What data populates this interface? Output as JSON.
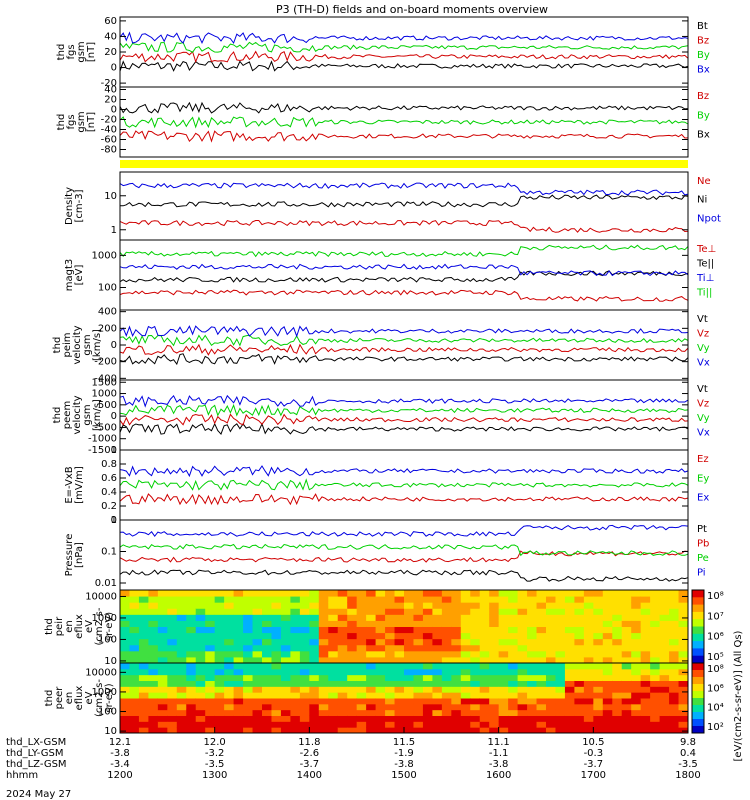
{
  "title": "P3 (TH-D) fields and on-board moments overview",
  "footer": {
    "rows": [
      {
        "label": "thd_LX-GSM",
        "values": [
          "12.1",
          "12.0",
          "11.8",
          "11.5",
          "11.1",
          "10.5",
          "9.8"
        ]
      },
      {
        "label": "thd_LY-GSM",
        "values": [
          "-3.8",
          "-3.2",
          "-2.6",
          "-1.9",
          "-1.1",
          "-0.3",
          "0.4"
        ]
      },
      {
        "label": "thd_LZ-GSM",
        "values": [
          "-3.4",
          "-3.5",
          "-3.7",
          "-3.8",
          "-3.8",
          "-3.7",
          "-3.5"
        ]
      },
      {
        "label": "hhmm",
        "values": [
          "1200",
          "1300",
          "1400",
          "1500",
          "1600",
          "1700",
          "1800"
        ]
      }
    ],
    "date": "2024 May 27"
  },
  "colorbar_label": "[eV/(cm2-s-sr-eV)] (All Qs)",
  "chart_data": [
    {
      "type": "line",
      "id": "fgs",
      "ylabel": [
        "thd",
        "fgs",
        "gsm",
        "[nT]"
      ],
      "ylim": [
        -25,
        65
      ],
      "yticks": [
        -20,
        0,
        20,
        40,
        60
      ],
      "legend": [
        {
          "name": "Bt",
          "color": "#000000"
        },
        {
          "name": "Bz",
          "color": "#d00000"
        },
        {
          "name": "By",
          "color": "#00d000"
        },
        {
          "name": "Bx",
          "color": "#0000e0"
        }
      ]
    },
    {
      "type": "line",
      "id": "fgs-dsl",
      "ylabel": [
        "thd",
        "fgs",
        "gsm",
        "[nT]"
      ],
      "ylim": [
        -95,
        45
      ],
      "yticks": [
        -80,
        -60,
        -40,
        -20,
        0,
        20,
        40
      ],
      "legend": [
        {
          "name": "Bz",
          "color": "#d00000"
        },
        {
          "name": "By",
          "color": "#00d000"
        },
        {
          "name": "Bx",
          "color": "#000000"
        }
      ]
    },
    {
      "type": "line",
      "id": "density",
      "ylabel": [
        "Density",
        "[cm-3]"
      ],
      "scale": "log",
      "ylim": [
        0.5,
        50
      ],
      "yticks": [
        1,
        10
      ],
      "legend": [
        {
          "name": "Ne",
          "color": "#d00000"
        },
        {
          "name": "Ni",
          "color": "#000000"
        },
        {
          "name": "Npot",
          "color": "#0000e0"
        }
      ]
    },
    {
      "type": "line",
      "id": "temp",
      "ylabel": [
        "magt3",
        "[eV]"
      ],
      "scale": "log",
      "ylim": [
        20,
        3000
      ],
      "yticks": [
        100,
        1000
      ],
      "legend": [
        {
          "name": "Te⊥",
          "color": "#d00000"
        },
        {
          "name": "Te||",
          "color": "#000000"
        },
        {
          "name": "Ti⊥",
          "color": "#0000e0"
        },
        {
          "name": "Ti||",
          "color": "#00d000"
        }
      ]
    },
    {
      "type": "line",
      "id": "ivel",
      "ylabel": [
        "thd",
        "peim",
        "velocity",
        "gsm",
        "[km/s]"
      ],
      "ylim": [
        -420,
        420
      ],
      "yticks": [
        -400,
        -200,
        0,
        200,
        400
      ],
      "legend": [
        {
          "name": "Vt",
          "color": "#000000"
        },
        {
          "name": "Vz",
          "color": "#d00000"
        },
        {
          "name": "Vy",
          "color": "#00d000"
        },
        {
          "name": "Vx",
          "color": "#0000e0"
        }
      ]
    },
    {
      "type": "line",
      "id": "evel",
      "ylabel": [
        "thd",
        "peem",
        "velocity",
        "gsm",
        "[km/s]"
      ],
      "ylim": [
        -1500,
        1600
      ],
      "yticks": [
        -1500,
        -1000,
        -500,
        0,
        500,
        1000,
        1500
      ],
      "legend": [
        {
          "name": "Vt",
          "color": "#000000"
        },
        {
          "name": "Vz",
          "color": "#d00000"
        },
        {
          "name": "Vy",
          "color": "#00d000"
        },
        {
          "name": "Vx",
          "color": "#0000e0"
        }
      ]
    },
    {
      "type": "line",
      "id": "efield",
      "ylabel": [
        "E=-VxB",
        "[mV/m]"
      ],
      "ylim": [
        0,
        1
      ],
      "yticks": [
        0.0,
        0.2,
        0.4,
        0.6,
        0.8,
        1.0
      ],
      "legend": [
        {
          "name": "Ez",
          "color": "#d00000"
        },
        {
          "name": "Ey",
          "color": "#00d000"
        },
        {
          "name": "Ex",
          "color": "#0000e0"
        }
      ]
    },
    {
      "type": "line",
      "id": "pressure",
      "ylabel": [
        "Pressure",
        "[nPa]"
      ],
      "scale": "log",
      "ylim": [
        0.006,
        1.0
      ],
      "yticks": [
        0.01,
        0.1,
        1.0
      ],
      "legend": [
        {
          "name": "Pt",
          "color": "#000000"
        },
        {
          "name": "Pb",
          "color": "#d00000"
        },
        {
          "name": "Pe",
          "color": "#00d000"
        },
        {
          "name": "Pi",
          "color": "#0000e0"
        }
      ]
    },
    {
      "type": "heatmap",
      "id": "ion-spec",
      "ylabel": [
        "thd",
        "peir",
        "en",
        "eflux",
        "eV",
        "(cm2-s-",
        "sr-eV)"
      ],
      "scale": "log",
      "ylim": [
        8,
        20000
      ],
      "yticks": [
        10,
        100,
        1000,
        10000
      ],
      "cbar": [
        "10⁵",
        "10⁶",
        "10⁷",
        "10⁸"
      ]
    },
    {
      "type": "heatmap",
      "id": "ele-spec",
      "ylabel": [
        "thd",
        "peer",
        "en",
        "eflux",
        "eV",
        "(cm2-s-",
        "sr-eV)"
      ],
      "scale": "log",
      "ylim": [
        8,
        30000
      ],
      "yticks": [
        10,
        100,
        1000,
        10000
      ],
      "cbar": [
        "10²",
        "10⁴",
        "10⁶",
        "10⁸"
      ]
    }
  ]
}
